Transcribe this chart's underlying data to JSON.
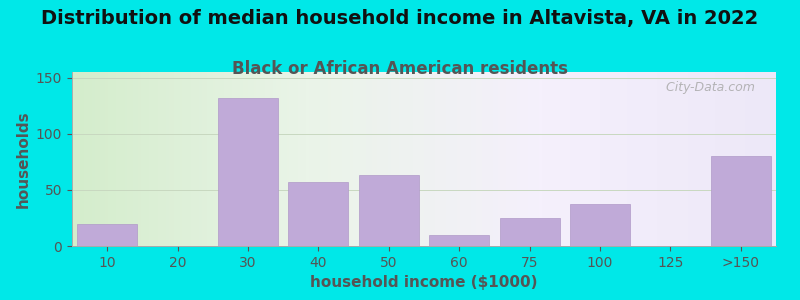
{
  "title": "Distribution of median household income in Altavista, VA in 2022",
  "subtitle": "Black or African American residents",
  "xlabel": "household income ($1000)",
  "ylabel": "households",
  "background_color": "#00e8e8",
  "bar_color": "#c0aad8",
  "bar_edge_color": "#b09ac8",
  "categories": [
    "10",
    "20",
    "30",
    "40",
    "50",
    "60",
    "75",
    "100",
    "125",
    ">150"
  ],
  "values": [
    20,
    0,
    132,
    57,
    63,
    10,
    25,
    37,
    0,
    80
  ],
  "ylim": [
    0,
    155
  ],
  "yticks": [
    0,
    50,
    100,
    150
  ],
  "title_fontsize": 14,
  "subtitle_fontsize": 12,
  "axis_label_fontsize": 11,
  "tick_fontsize": 10,
  "title_color": "#111111",
  "subtitle_color": "#555555",
  "tick_color": "#555555",
  "watermark": "  City-Data.com"
}
